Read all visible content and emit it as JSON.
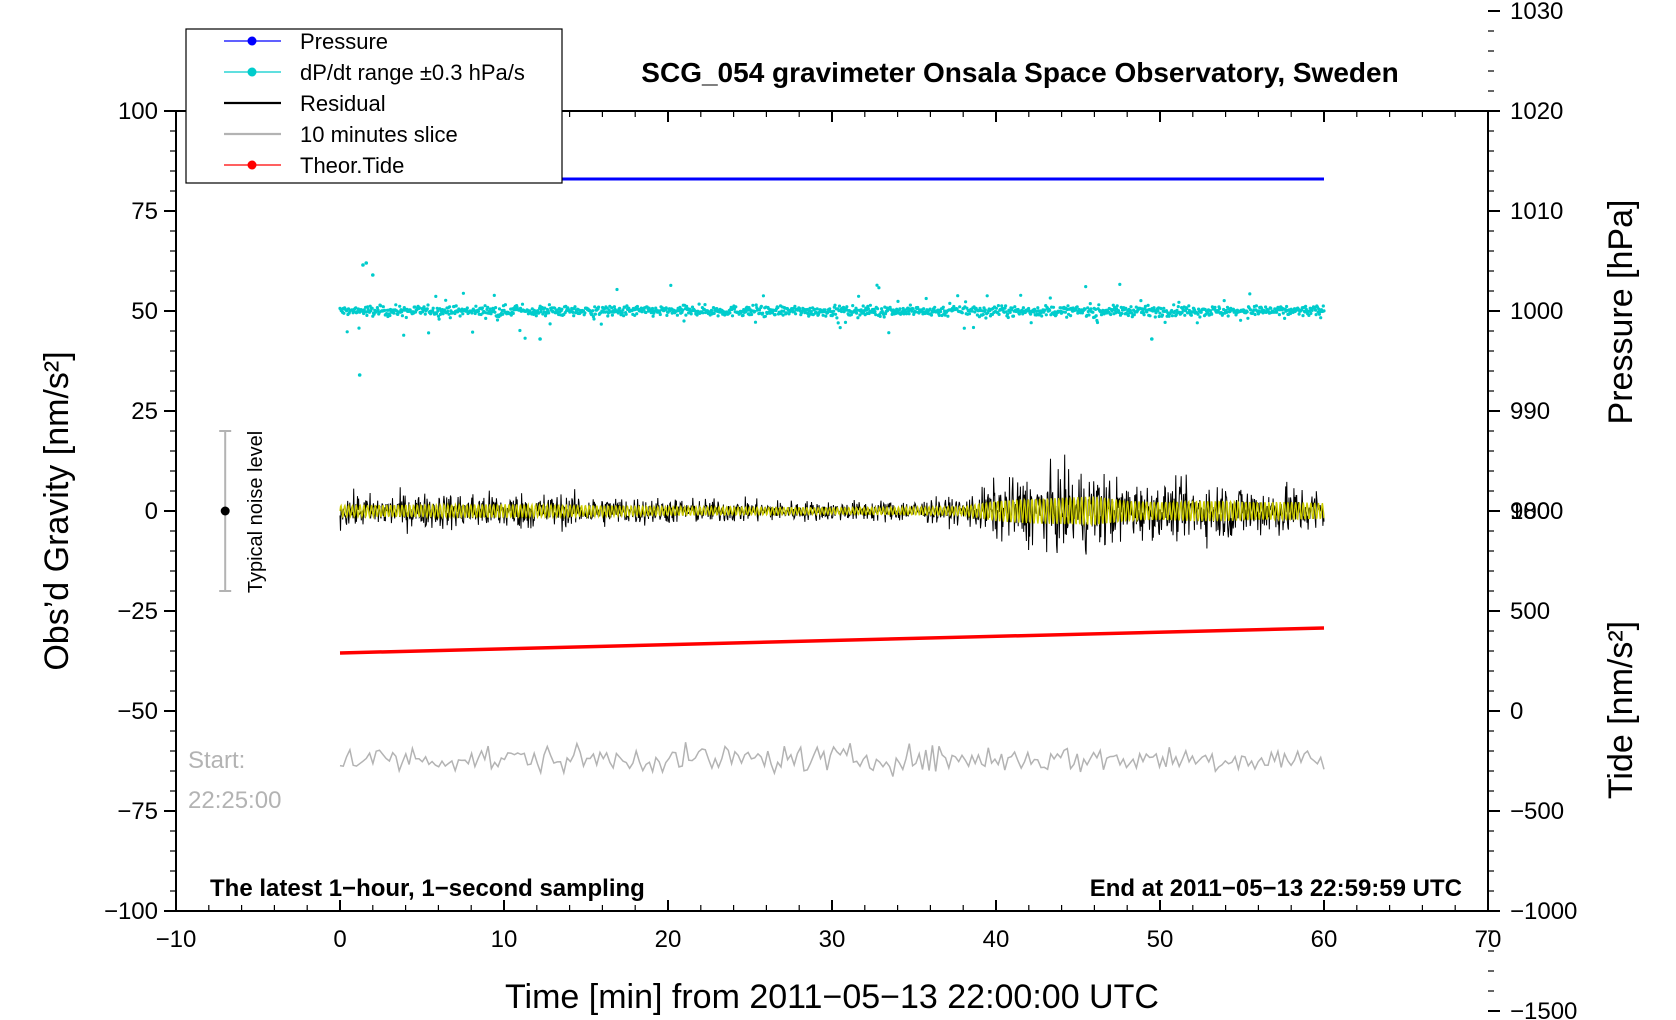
{
  "chart_data": {
    "type": "line",
    "title": "SCG_054 gravimeter Onsala Space Observatory, Sweden",
    "xlabel": "Time [min] from 2011−05−13 22:00:00 UTC",
    "ylabel_left": "Obs’d Gravity [nm/s²]",
    "ylabel_right_top": "Pressure [hPa]",
    "ylabel_right_bottom": "Tide [nm/s²]",
    "xlim": [
      -10,
      70
    ],
    "ylim_left": [
      -100,
      100
    ],
    "x_ticks": [
      "−10",
      "0",
      "10",
      "20",
      "30",
      "40",
      "50",
      "60",
      "70"
    ],
    "y_ticks_left": [
      "−100",
      "−75",
      "−50",
      "−25",
      "0",
      "25",
      "50",
      "75",
      "100"
    ],
    "pressure_ticks": [
      "980",
      "990",
      "1000",
      "1010",
      "1020",
      "1030"
    ],
    "tide_ticks": [
      "−1500",
      "−1000",
      "−500",
      "0",
      "500",
      "1000"
    ],
    "corner_left": "The latest 1−hour, 1−second sampling",
    "corner_right": "End at 2011−05−13 22:59:59 UTC",
    "start_label": "Start:",
    "start_time": "22:25:00",
    "noise_label": "Typical noise level",
    "noise_bar_range": [
      -20,
      20
    ],
    "legend": [
      {
        "label": "Pressure",
        "color": "#0000ff",
        "marker": "dot"
      },
      {
        "label": "dP/dt range ±0.3 hPa/s",
        "color": "#00cccc",
        "marker": "dot"
      },
      {
        "label": "Residual",
        "color": "#000000",
        "marker": "line"
      },
      {
        "label": "10 minutes slice",
        "color": "#b3b3b3",
        "marker": "line"
      },
      {
        "label": "Theor.Tide",
        "color": "#ff0000",
        "marker": "dot"
      }
    ],
    "series": [
      {
        "name": "Pressure",
        "color": "#0000ff",
        "axis": "pressure_hPa",
        "x": [
          0,
          60
        ],
        "y": [
          1013.2,
          1013.2
        ]
      },
      {
        "name": "dP/dt range ±0.3 hPa/s",
        "color": "#00cccc",
        "axis": "left_nm_s2",
        "center": 50,
        "typical_spread": [
          -3,
          3
        ],
        "outliers_min": 34,
        "outliers_max": 62,
        "x": [
          0,
          60
        ]
      },
      {
        "name": "Residual",
        "color": "#000000",
        "axis": "left_nm_s2",
        "x": [
          0,
          10,
          20,
          30,
          38,
          40,
          42,
          44,
          46,
          48,
          50,
          52,
          54,
          56,
          58,
          60
        ],
        "amplitude": [
          5,
          6,
          4,
          3,
          4,
          9,
          11,
          12,
          13,
          9,
          8,
          9,
          9,
          8,
          8,
          7
        ]
      },
      {
        "name": "Residual (10 min mean)",
        "color": "#cccc00",
        "axis": "left_nm_s2",
        "x": [
          0,
          60
        ],
        "y": [
          0,
          0
        ]
      },
      {
        "name": "10 minutes slice",
        "color": "#b3b3b3",
        "axis": "left_nm_s2",
        "x": [
          0,
          60
        ],
        "center": -62,
        "amplitude": 4
      },
      {
        "name": "Theor.Tide",
        "color": "#ff0000",
        "axis": "tide_nm_s2",
        "x": [
          0,
          60
        ],
        "y": [
          290,
          415
        ]
      }
    ],
    "colors": {
      "pressure": "#0000ff",
      "dpdt": "#00cccc",
      "residual": "#000000",
      "residual_mean": "#cccc00",
      "slice": "#b3b3b3",
      "tide": "#ff0000"
    }
  }
}
